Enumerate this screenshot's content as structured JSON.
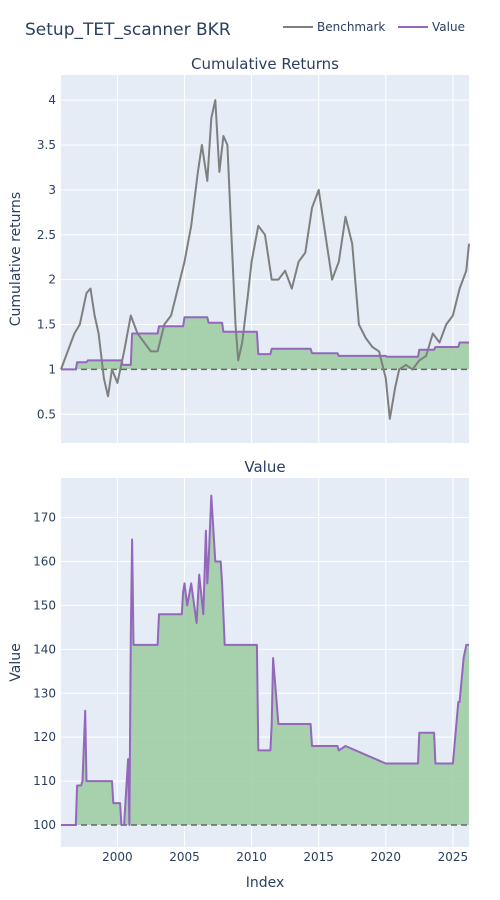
{
  "figure": {
    "title": "Setup_TET_scanner BKR",
    "legend": [
      {
        "name": "Benchmark",
        "color": "#7f7f7f"
      },
      {
        "name": "Value",
        "color": "#9467bd"
      }
    ],
    "colors": {
      "plot_bg": "#e5ecf6",
      "grid": "#ffffff",
      "text": "#2a3f5f",
      "benchmark": "#7f7f7f",
      "value": "#9467bd",
      "fill": "#9ccb9f",
      "fill_dark": "#5e8f61",
      "baseline": "#666666"
    }
  },
  "chart_data": [
    {
      "type": "line",
      "title": "Cumulative Returns",
      "xlabel": "",
      "ylabel": "Cumulative returns",
      "xlim": [
        1995.8,
        2026.2
      ],
      "ylim": [
        0.18,
        4.28
      ],
      "x_ticks": [
        2000,
        2005,
        2010,
        2015,
        2020,
        2025
      ],
      "y_ticks": [
        0.5,
        1,
        1.5,
        2,
        2.5,
        3,
        3.5,
        4
      ],
      "y_tick_labels": [
        "0.5",
        "1",
        "1.5",
        "2",
        "2.5",
        "3",
        "3.5",
        "4"
      ],
      "baseline": 1,
      "legend_position": "top-right",
      "series": [
        {
          "name": "Benchmark",
          "x": [
            1995.8,
            1996.3,
            1996.8,
            1997.2,
            1997.7,
            1998.0,
            1998.3,
            1998.6,
            1999.0,
            1999.3,
            1999.6,
            2000.0,
            2000.5,
            2001.0,
            2001.5,
            2002.0,
            2002.5,
            2003.0,
            2003.5,
            2004.0,
            2004.5,
            2005.0,
            2005.5,
            2006.0,
            2006.3,
            2006.7,
            2007.0,
            2007.3,
            2007.6,
            2007.9,
            2008.2,
            2008.5,
            2008.8,
            2009.0,
            2009.3,
            2009.7,
            2010.0,
            2010.5,
            2011.0,
            2011.5,
            2012.0,
            2012.5,
            2013.0,
            2013.5,
            2014.0,
            2014.5,
            2015.0,
            2015.5,
            2016.0,
            2016.5,
            2017.0,
            2017.5,
            2018.0,
            2018.5,
            2019.0,
            2019.5,
            2020.0,
            2020.3,
            2020.7,
            2021.0,
            2021.5,
            2022.0,
            2022.5,
            2023.0,
            2023.5,
            2024.0,
            2024.5,
            2025.0,
            2025.5,
            2026.0,
            2026.2
          ],
          "y": [
            1.0,
            1.2,
            1.4,
            1.5,
            1.85,
            1.9,
            1.6,
            1.4,
            0.9,
            0.7,
            1.0,
            0.85,
            1.2,
            1.6,
            1.4,
            1.3,
            1.2,
            1.2,
            1.5,
            1.6,
            1.9,
            2.2,
            2.6,
            3.2,
            3.5,
            3.1,
            3.8,
            4.0,
            3.2,
            3.6,
            3.5,
            2.5,
            1.5,
            1.1,
            1.3,
            1.8,
            2.2,
            2.6,
            2.5,
            2.0,
            2.0,
            2.1,
            1.9,
            2.2,
            2.3,
            2.8,
            3.0,
            2.5,
            2.0,
            2.2,
            2.7,
            2.4,
            1.5,
            1.35,
            1.25,
            1.2,
            0.9,
            0.45,
            0.8,
            1.0,
            1.05,
            1.0,
            1.1,
            1.15,
            1.4,
            1.3,
            1.5,
            1.6,
            1.9,
            2.1,
            2.4
          ]
        },
        {
          "name": "Value",
          "x": [
            1995.8,
            1996.9,
            1997.0,
            1997.7,
            1997.8,
            2000.3,
            2000.4,
            2001.0,
            2001.1,
            2003.0,
            2003.1,
            2004.9,
            2005.0,
            2006.7,
            2006.8,
            2007.8,
            2007.9,
            2010.4,
            2010.5,
            2011.4,
            2011.5,
            2014.4,
            2014.5,
            2016.4,
            2016.5,
            2020.0,
            2020.1,
            2022.4,
            2022.5,
            2023.6,
            2023.7,
            2025.4,
            2025.5,
            2026.2
          ],
          "y": [
            1.0,
            1.0,
            1.08,
            1.08,
            1.1,
            1.1,
            1.05,
            1.05,
            1.4,
            1.4,
            1.48,
            1.48,
            1.58,
            1.58,
            1.52,
            1.52,
            1.42,
            1.42,
            1.17,
            1.17,
            1.23,
            1.23,
            1.18,
            1.18,
            1.15,
            1.15,
            1.14,
            1.14,
            1.22,
            1.22,
            1.25,
            1.25,
            1.3,
            1.3
          ]
        }
      ]
    },
    {
      "type": "area",
      "title": "Value",
      "xlabel": "Index",
      "ylabel": "Value",
      "xlim": [
        1995.8,
        2026.2
      ],
      "ylim": [
        95,
        179
      ],
      "x_ticks": [
        2000,
        2005,
        2010,
        2015,
        2020,
        2025
      ],
      "x_tick_labels": [
        "2000",
        "2005",
        "2010",
        "2015",
        "2020",
        "2025"
      ],
      "y_ticks": [
        100,
        110,
        120,
        130,
        140,
        150,
        160,
        170
      ],
      "y_tick_labels": [
        "100",
        "110",
        "120",
        "130",
        "140",
        "150",
        "160",
        "170"
      ],
      "baseline": 100,
      "series": [
        {
          "name": "Value",
          "x": [
            1995.8,
            1996.9,
            1997.0,
            1997.3,
            1997.4,
            1997.6,
            1997.7,
            1998.0,
            1998.5,
            1999.0,
            1999.6,
            1999.7,
            2000.2,
            2000.3,
            2000.5,
            2000.6,
            2000.8,
            2000.9,
            2001.0,
            2001.1,
            2001.2,
            2001.3,
            2002.0,
            2002.5,
            2003.0,
            2003.1,
            2004.0,
            2004.5,
            2004.8,
            2004.9,
            2005.0,
            2005.2,
            2005.5,
            2005.9,
            2006.1,
            2006.4,
            2006.6,
            2006.7,
            2006.8,
            2007.0,
            2007.3,
            2007.7,
            2007.8,
            2008.0,
            2010.4,
            2010.5,
            2010.7,
            2011.4,
            2011.5,
            2011.6,
            2012.0,
            2014.4,
            2014.5,
            2016.4,
            2016.5,
            2017.0,
            2020.0,
            2022.4,
            2022.5,
            2023.2,
            2023.6,
            2023.7,
            2024.0,
            2024.5,
            2025.0,
            2025.4,
            2025.5,
            2025.8,
            2026.0,
            2026.2
          ],
          "y": [
            100,
            100,
            109,
            109,
            110,
            126,
            110,
            110,
            110,
            110,
            110,
            105,
            105,
            100,
            100,
            105,
            115,
            100,
            143,
            165,
            141,
            141,
            141,
            141,
            141,
            148,
            148,
            148,
            148,
            153,
            155,
            150,
            155,
            146,
            157,
            148,
            167,
            155,
            160,
            175,
            160,
            160,
            155,
            141,
            141,
            117,
            117,
            117,
            123,
            138,
            123,
            123,
            118,
            118,
            117,
            118,
            114,
            114,
            121,
            121,
            121,
            114,
            114,
            114,
            114,
            128,
            128,
            138,
            141,
            141
          ]
        }
      ]
    }
  ]
}
